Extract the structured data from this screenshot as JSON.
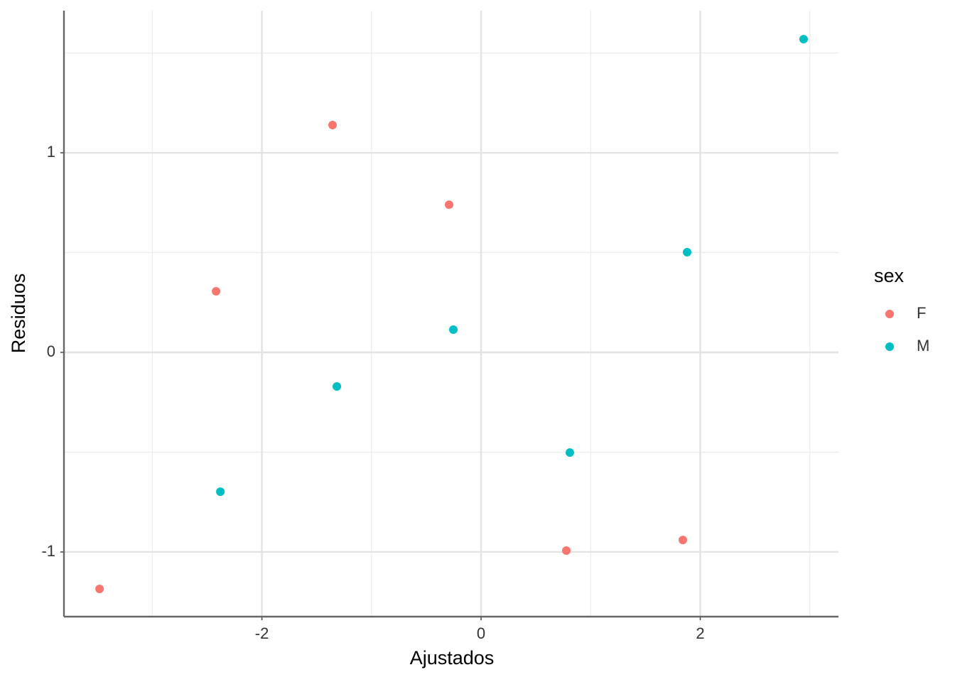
{
  "chart_data": {
    "type": "scatter",
    "x_label": "Ajustados",
    "y_label": "Residuos",
    "legend_title": "sex",
    "legend_position": "right",
    "xlim": [
      -3.806,
      3.261
    ],
    "ylim": [
      -1.324,
      1.712
    ],
    "xticks": [
      -2,
      0,
      2
    ],
    "yticks": [
      -1,
      0,
      1
    ],
    "x_minor_grid": [
      -3,
      -1,
      1,
      3
    ],
    "y_minor_grid": [
      -0.5,
      0.5,
      1.5
    ],
    "grid": true,
    "series": [
      {
        "name": "F",
        "color": "#F8766D",
        "x": [
          -3.481,
          -2.418,
          -1.355,
          -0.292,
          0.778,
          1.841
        ],
        "values": [
          -1.185,
          0.306,
          1.139,
          0.74,
          -0.993,
          -0.94
        ]
      },
      {
        "name": "M",
        "color": "#00BFC4",
        "x": [
          -2.379,
          -1.316,
          -0.253,
          0.81,
          1.88,
          2.943
        ],
        "values": [
          -0.698,
          -0.171,
          0.114,
          -0.502,
          0.502,
          1.569
        ]
      }
    ]
  }
}
